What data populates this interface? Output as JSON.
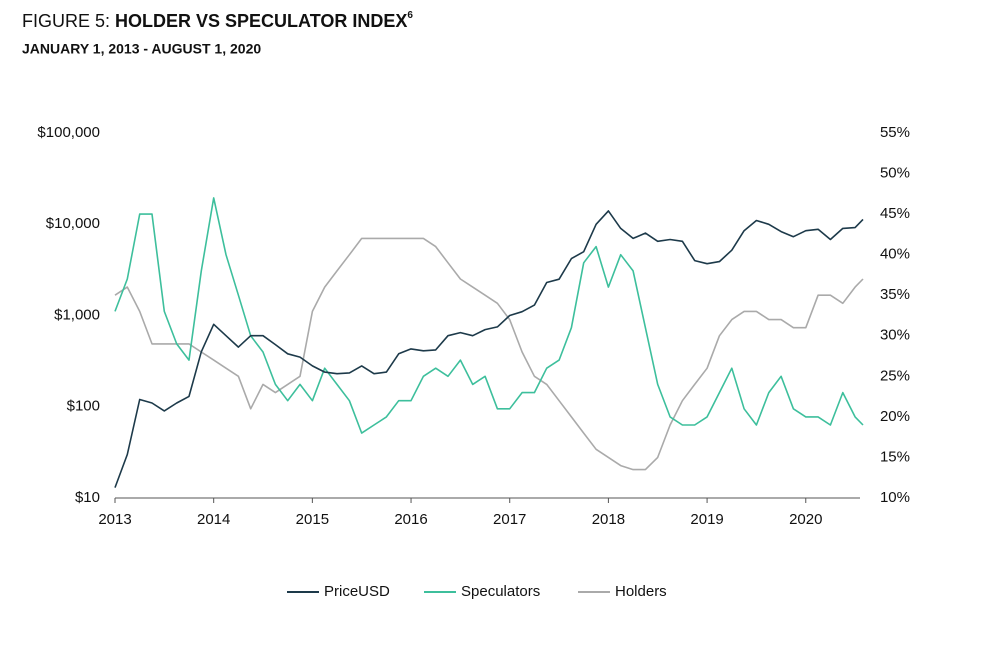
{
  "chart_data": {
    "type": "line",
    "title": "FIGURE 5:",
    "title_bold": "HOLDER VS SPECULATOR INDEX",
    "title_note": "6",
    "subtitle": "JANUARY 1, 2013 - AUGUST 1, 2020",
    "x": [
      2013,
      2013.125,
      2013.25,
      2013.375,
      2013.5,
      2013.625,
      2013.75,
      2013.875,
      2014,
      2014.125,
      2014.25,
      2014.375,
      2014.5,
      2014.625,
      2014.75,
      2014.875,
      2015,
      2015.125,
      2015.25,
      2015.375,
      2015.5,
      2015.625,
      2015.75,
      2015.875,
      2016,
      2016.125,
      2016.25,
      2016.375,
      2016.5,
      2016.625,
      2016.75,
      2016.875,
      2017,
      2017.125,
      2017.25,
      2017.375,
      2017.5,
      2017.625,
      2017.75,
      2017.875,
      2018,
      2018.125,
      2018.25,
      2018.375,
      2018.5,
      2018.625,
      2018.75,
      2018.875,
      2019,
      2019.125,
      2019.25,
      2019.375,
      2019.5,
      2019.625,
      2019.75,
      2019.875,
      2020,
      2020.125,
      2020.25,
      2020.375,
      2020.5,
      2020.58
    ],
    "xlim": [
      2013,
      2020.58
    ],
    "xticks": [
      2013,
      2014,
      2015,
      2016,
      2017,
      2018,
      2019,
      2020
    ],
    "ylim": [
      10,
      100000
    ],
    "yscale": "log",
    "yticks": [
      {
        "value": 10,
        "label": "$10"
      },
      {
        "value": 100,
        "label": "$100"
      },
      {
        "value": 1000,
        "label": "$1,000"
      },
      {
        "value": 10000,
        "label": "$10,000"
      },
      {
        "value": 100000,
        "label": "$100,000"
      }
    ],
    "y2lim": [
      10,
      55
    ],
    "y2ticks": [
      {
        "value": 10,
        "label": "10%"
      },
      {
        "value": 15,
        "label": "15%"
      },
      {
        "value": 20,
        "label": "20%"
      },
      {
        "value": 25,
        "label": "25%"
      },
      {
        "value": 30,
        "label": "30%"
      },
      {
        "value": 35,
        "label": "35%"
      },
      {
        "value": 40,
        "label": "40%"
      },
      {
        "value": 45,
        "label": "45%"
      },
      {
        "value": 50,
        "label": "50%"
      },
      {
        "value": 55,
        "label": "55%"
      }
    ],
    "grid": false,
    "legend": "bottom",
    "series": [
      {
        "name": "PriceUSD",
        "color": "#1d3a4a",
        "axis": "y",
        "values": [
          13,
          30,
          120,
          110,
          90,
          110,
          130,
          400,
          800,
          600,
          450,
          600,
          600,
          480,
          380,
          350,
          280,
          240,
          230,
          235,
          280,
          230,
          240,
          380,
          430,
          410,
          420,
          600,
          650,
          600,
          700,
          750,
          1000,
          1100,
          1300,
          2300,
          2500,
          4200,
          5000,
          10000,
          14000,
          9000,
          7000,
          8000,
          6500,
          6800,
          6500,
          4000,
          3700,
          3900,
          5200,
          8500,
          11000,
          10000,
          8300,
          7300,
          8500,
          8800,
          6800,
          9000,
          9200,
          11300
        ]
      },
      {
        "name": "Speculators",
        "color": "#3dbf9c",
        "axis": "y2",
        "values": [
          33,
          37,
          45,
          45,
          33,
          29,
          27,
          38,
          47,
          40,
          35,
          30,
          28,
          24,
          22,
          24,
          22,
          26,
          24,
          22,
          18,
          19,
          20,
          22,
          22,
          25,
          26,
          25,
          27,
          24,
          25,
          21,
          21,
          23,
          23,
          26,
          27,
          31,
          39,
          41,
          36,
          40,
          38,
          31,
          24,
          20,
          19,
          19,
          20,
          23,
          26,
          21,
          19,
          23,
          25,
          21,
          20,
          20,
          19,
          23,
          20,
          19
        ]
      },
      {
        "name": "Holders",
        "color": "#aaaaaa",
        "axis": "y2",
        "values": [
          35,
          36,
          33,
          29,
          29,
          29,
          29,
          28,
          27,
          26,
          25,
          21,
          24,
          23,
          24,
          25,
          33,
          36,
          38,
          40,
          42,
          42,
          42,
          42,
          42,
          42,
          41,
          39,
          37,
          36,
          35,
          34,
          32,
          28,
          25,
          24,
          22,
          20,
          18,
          16,
          15,
          14,
          13.5,
          13.5,
          15,
          19,
          22,
          24,
          26,
          30,
          32,
          33,
          33,
          32,
          32,
          31,
          31,
          35,
          35,
          34,
          36,
          37
        ]
      }
    ]
  }
}
